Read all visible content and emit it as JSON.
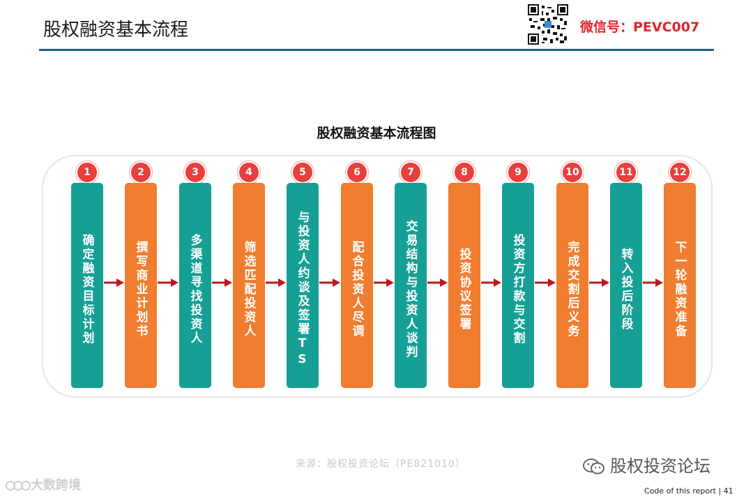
{
  "header": {
    "title": "股权融资基本流程",
    "wechat": "微信号：PEVC007"
  },
  "diagram": {
    "title": "股权融资基本流程图",
    "steps": [
      {
        "num": "1",
        "label": "确定融资目标计划",
        "color": "teal"
      },
      {
        "num": "2",
        "label": "撰写商业计划书",
        "color": "orange"
      },
      {
        "num": "3",
        "label": "多渠道寻找投资人",
        "color": "teal"
      },
      {
        "num": "4",
        "label": "筛选匹配投资人",
        "color": "orange"
      },
      {
        "num": "5",
        "label": "与投资人约谈及签署TS",
        "color": "teal"
      },
      {
        "num": "6",
        "label": "配合投资人尽调",
        "color": "orange"
      },
      {
        "num": "7",
        "label": "交易结构与投资人谈判",
        "color": "teal"
      },
      {
        "num": "8",
        "label": "投资协议签署",
        "color": "orange"
      },
      {
        "num": "9",
        "label": "投资方打款与交割",
        "color": "teal"
      },
      {
        "num": "10",
        "label": "完成交割后义务",
        "color": "orange"
      },
      {
        "num": "11",
        "label": "转入投后阶段",
        "color": "teal"
      },
      {
        "num": "12",
        "label": "下一轮融资准备",
        "color": "orange"
      }
    ]
  },
  "footer": {
    "source": "来源：股权投资论坛（PE821010）",
    "forum": "股权投资论坛",
    "watermark": "大数跨境",
    "page_code": "Code of this report  | 41"
  },
  "colors": {
    "teal": "#16a095",
    "orange": "#f07d30",
    "badge": "#e8403d",
    "arrow": "#c0171c",
    "rule": "#1f5f86"
  }
}
